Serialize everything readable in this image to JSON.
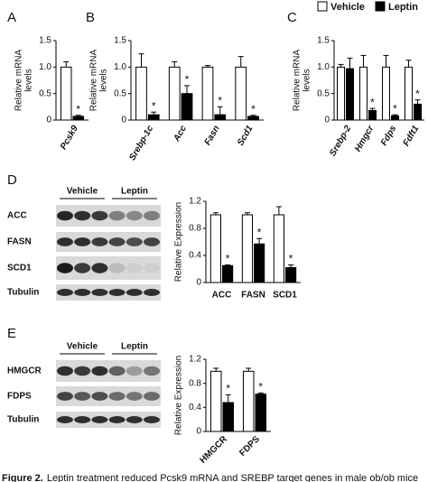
{
  "panel_labels": [
    "A",
    "B",
    "C",
    "D",
    "E"
  ],
  "blots": [
    {
      "groups": [
        "Vehicle",
        "Leptin"
      ],
      "rows": [
        "ACC",
        "FASN",
        "SCD1",
        "Tubulin"
      ]
    },
    {
      "groups": [
        "Vehicle",
        "Leptin"
      ],
      "rows": [
        "HMGCR",
        "FDPS",
        "Tubulin"
      ]
    }
  ],
  "caption": {
    "label": "Figure 2.",
    "text": "Leptin treatment reduced Pcsk9 mRNA and SREBP target genes in male ob/ob mice"
  },
  "chart_data": [
    {
      "type": "bar",
      "ylabel": [
        "Relative mRNA",
        "levels"
      ],
      "categories": [
        "Pcsk9"
      ],
      "category_style": "italic",
      "rotate_labels": -60,
      "ylim": [
        0,
        1.5
      ],
      "yticks": [
        0,
        0.5,
        {
          "value": 1,
          "label": "1.0"
        },
        {
          "value": 1.5,
          "label": "1.5"
        }
      ],
      "legend": false,
      "series": [
        {
          "name": "Vehicle",
          "color": "#ffffff",
          "values": [
            1.0
          ],
          "errors": [
            0.1
          ]
        },
        {
          "name": "Leptin",
          "color": "#000000",
          "values": [
            0.07
          ],
          "errors": [
            0.02
          ],
          "sig_labels": [
            "*"
          ]
        }
      ]
    },
    {
      "type": "bar",
      "ylabel": [
        "Relative mRNA",
        "levels"
      ],
      "categories": [
        "Srebp-1c",
        "Acc",
        "Fasn",
        "Scd1"
      ],
      "category_style": "italic",
      "rotate_labels": -60,
      "ylim": [
        0,
        1.5
      ],
      "yticks": [
        0,
        0.5,
        {
          "value": 1,
          "label": "1.0"
        },
        {
          "value": 1.5,
          "label": "1.5"
        }
      ],
      "legend": false,
      "series": [
        {
          "name": "Vehicle",
          "color": "#ffffff",
          "values": [
            1.0,
            1.0,
            1.0,
            1.0
          ],
          "errors": [
            0.25,
            0.1,
            0.03,
            0.2
          ]
        },
        {
          "name": "Leptin",
          "color": "#000000",
          "values": [
            0.1,
            0.5,
            0.1,
            0.07
          ],
          "errors": [
            0.05,
            0.15,
            0.15,
            0.02
          ],
          "sig_labels": [
            "*",
            "*",
            "*",
            "*"
          ]
        }
      ]
    },
    {
      "type": "bar",
      "ylabel": [
        "Relative mRNA",
        "levels"
      ],
      "categories": [
        "Srebp-2",
        "Hmgcr",
        "Fdps",
        "Fdft1"
      ],
      "category_style": "italic",
      "rotate_labels": -60,
      "ylim": [
        0,
        1.5
      ],
      "yticks": [
        0,
        0.5,
        {
          "value": 1,
          "label": "1.0"
        },
        {
          "value": 1.5,
          "label": "1.5"
        }
      ],
      "legend": true,
      "legend_position": "top",
      "series": [
        {
          "name": "Vehicle",
          "color": "#ffffff",
          "values": [
            1.0,
            1.0,
            1.0,
            1.0
          ],
          "errors": [
            0.05,
            0.22,
            0.22,
            0.13
          ]
        },
        {
          "name": "Leptin",
          "color": "#000000",
          "values": [
            0.97,
            0.18,
            0.08,
            0.3
          ],
          "errors": [
            0.2,
            0.04,
            0.02,
            0.08
          ],
          "sig_labels": [
            null,
            "*",
            "*",
            "*"
          ]
        }
      ]
    },
    {
      "type": "bar",
      "ylabel": [
        "Relative Expression"
      ],
      "categories": [
        "ACC",
        "FASN",
        "SCD1"
      ],
      "category_style": "normal",
      "rotate_labels": 0,
      "ylim": [
        0,
        1.2
      ],
      "yticks": [
        0,
        0.4,
        0.8,
        1.2
      ],
      "legend": false,
      "series": [
        {
          "name": "Vehicle",
          "color": "#ffffff",
          "values": [
            1.0,
            1.0,
            1.0
          ],
          "errors": [
            0.03,
            0.03,
            0.12
          ]
        },
        {
          "name": "Leptin",
          "color": "#000000",
          "values": [
            0.25,
            0.57,
            0.22
          ],
          "errors": [
            0.01,
            0.08,
            0.04
          ],
          "sig_labels": [
            "*",
            "*",
            "*"
          ]
        }
      ]
    },
    {
      "type": "bar",
      "ylabel": [
        "Relative Expression"
      ],
      "categories": [
        "HMGCR",
        "FDPS"
      ],
      "category_style": "normal",
      "rotate_labels": -45,
      "ylim": [
        0,
        1.2
      ],
      "yticks": [
        0,
        0.4,
        0.8,
        1.2
      ],
      "legend": false,
      "series": [
        {
          "name": "Vehicle",
          "color": "#ffffff",
          "values": [
            1.0,
            1.0
          ],
          "errors": [
            0.05,
            0.05
          ]
        },
        {
          "name": "Leptin",
          "color": "#000000",
          "values": [
            0.48,
            0.62
          ],
          "errors": [
            0.13,
            0.02
          ],
          "sig_labels": [
            "*",
            "*"
          ]
        }
      ]
    }
  ]
}
